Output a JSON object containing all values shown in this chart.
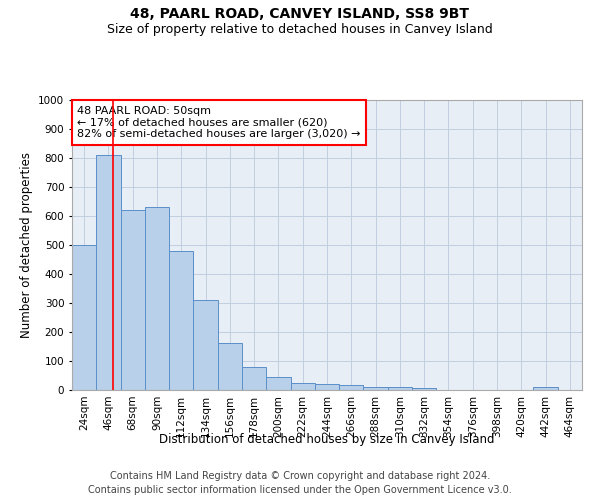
{
  "title": "48, PAARL ROAD, CANVEY ISLAND, SS8 9BT",
  "subtitle": "Size of property relative to detached houses in Canvey Island",
  "xlabel": "Distribution of detached houses by size in Canvey Island",
  "ylabel": "Number of detached properties",
  "bar_color": "#b8d0ea",
  "bar_edge_color": "#5b8fc9",
  "grid_color": "#c0cfe0",
  "background_color": "#e8eef6",
  "annotation_text": "48 PAARL ROAD: 50sqm\n← 17% of detached houses are smaller (620)\n82% of semi-detached houses are larger (3,020) →",
  "annotation_box_color": "white",
  "annotation_border_color": "red",
  "property_line_color": "red",
  "categories": [
    "24sqm",
    "46sqm",
    "68sqm",
    "90sqm",
    "112sqm",
    "134sqm",
    "156sqm",
    "178sqm",
    "200sqm",
    "222sqm",
    "244sqm",
    "266sqm",
    "288sqm",
    "310sqm",
    "332sqm",
    "354sqm",
    "376sqm",
    "398sqm",
    "420sqm",
    "442sqm",
    "464sqm"
  ],
  "values": [
    500,
    810,
    620,
    630,
    480,
    310,
    163,
    80,
    45,
    25,
    22,
    17,
    12,
    10,
    8,
    0,
    0,
    0,
    0,
    12,
    0
  ],
  "ylim": [
    0,
    1000
  ],
  "yticks": [
    0,
    100,
    200,
    300,
    400,
    500,
    600,
    700,
    800,
    900,
    1000
  ],
  "footer1": "Contains HM Land Registry data © Crown copyright and database right 2024.",
  "footer2": "Contains public sector information licensed under the Open Government Licence v3.0.",
  "title_fontsize": 10,
  "subtitle_fontsize": 9,
  "axis_label_fontsize": 8.5,
  "tick_fontsize": 7.5,
  "footer_fontsize": 7,
  "annot_fontsize": 8
}
